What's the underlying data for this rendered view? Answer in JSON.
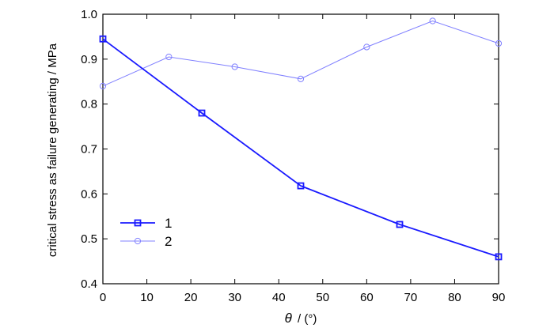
{
  "chart_data": {
    "type": "line",
    "title": "",
    "xlabel_symbol": "θ",
    "xlabel_unit": "/ (°)",
    "ylabel": "critical stress as failure generating / MPa",
    "xlim": [
      0,
      90
    ],
    "ylim": [
      0.4,
      1.0
    ],
    "xticks": [
      0,
      10,
      20,
      30,
      40,
      50,
      60,
      70,
      80,
      90
    ],
    "yticks": [
      0.4,
      0.5,
      0.6,
      0.7,
      0.8,
      0.9,
      1.0
    ],
    "ytick_labels": [
      "0.4",
      "0.5",
      "0.6",
      "0.7",
      "0.8",
      "0.9",
      "1.0"
    ],
    "grid": false,
    "legend_position": "bottom-left",
    "series": [
      {
        "name": "1",
        "marker": "square",
        "color": "#1a1aff",
        "x": [
          0,
          22.5,
          45,
          67.5,
          90
        ],
        "y": [
          0.945,
          0.78,
          0.618,
          0.532,
          0.46
        ]
      },
      {
        "name": "2",
        "marker": "circle",
        "color": "#8080ff",
        "x": [
          0,
          15,
          30,
          45,
          60,
          75,
          90
        ],
        "y": [
          0.84,
          0.905,
          0.883,
          0.856,
          0.927,
          0.985,
          0.935
        ]
      }
    ]
  }
}
